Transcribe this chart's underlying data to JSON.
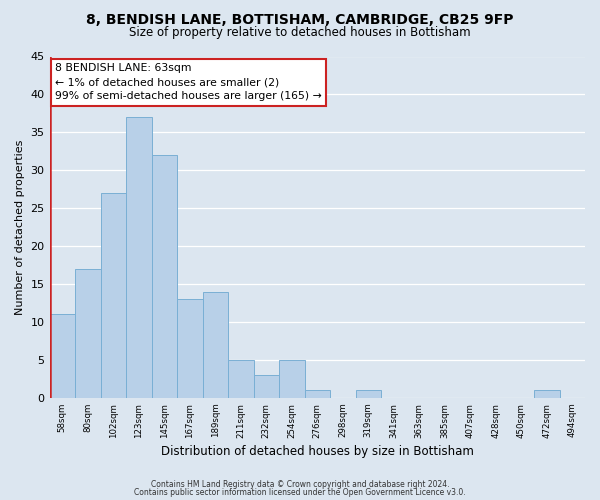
{
  "title": "8, BENDISH LANE, BOTTISHAM, CAMBRIDGE, CB25 9FP",
  "subtitle": "Size of property relative to detached houses in Bottisham",
  "xlabel": "Distribution of detached houses by size in Bottisham",
  "ylabel": "Number of detached properties",
  "footer_line1": "Contains HM Land Registry data © Crown copyright and database right 2024.",
  "footer_line2": "Contains public sector information licensed under the Open Government Licence v3.0.",
  "bin_labels": [
    "58sqm",
    "80sqm",
    "102sqm",
    "123sqm",
    "145sqm",
    "167sqm",
    "189sqm",
    "211sqm",
    "232sqm",
    "254sqm",
    "276sqm",
    "298sqm",
    "319sqm",
    "341sqm",
    "363sqm",
    "385sqm",
    "407sqm",
    "428sqm",
    "450sqm",
    "472sqm",
    "494sqm"
  ],
  "bar_values": [
    11,
    17,
    27,
    37,
    32,
    13,
    14,
    5,
    3,
    5,
    1,
    0,
    1,
    0,
    0,
    0,
    0,
    0,
    0,
    1,
    0
  ],
  "bar_color": "#b8d0e8",
  "bar_edge_color": "#7aafd4",
  "highlight_color": "#cc2222",
  "ylim": [
    0,
    45
  ],
  "yticks": [
    0,
    5,
    10,
    15,
    20,
    25,
    30,
    35,
    40,
    45
  ],
  "annotation_title": "8 BENDISH LANE: 63sqm",
  "annotation_line1": "← 1% of detached houses are smaller (2)",
  "annotation_line2": "99% of semi-detached houses are larger (165) →",
  "annotation_box_facecolor": "#ffffff",
  "annotation_box_edgecolor": "#cc2222",
  "bg_color": "#dce6f0"
}
